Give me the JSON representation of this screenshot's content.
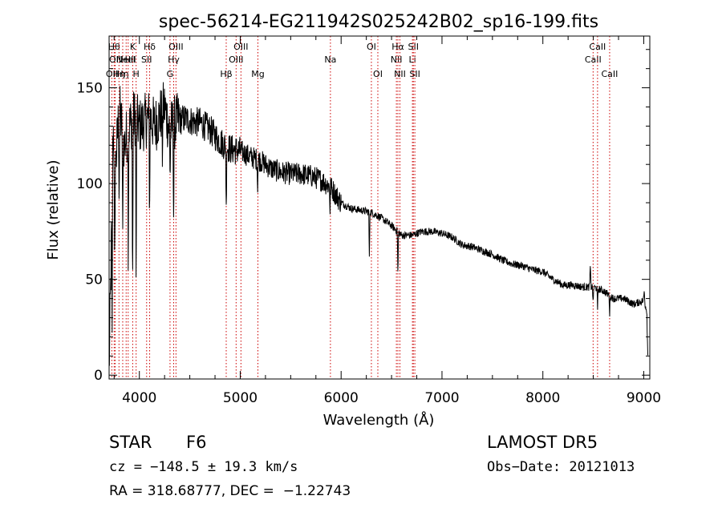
{
  "chart_data": {
    "type": "line",
    "title": "spec-56214-EG211942S025242B02_sp16-199.fits",
    "xlabel": "Wavelength (Å)",
    "ylabel": "Flux (relative)",
    "xlim": [
      3700,
      9060
    ],
    "ylim": [
      -2,
      177
    ],
    "x_ticks": [
      4000,
      5000,
      6000,
      7000,
      8000,
      9000
    ],
    "y_ticks": [
      0,
      50,
      100,
      150
    ],
    "grid": false,
    "line_color": "#000000",
    "marker_line_color": "#cc0000",
    "spectrum_anchor_points": [
      {
        "x": 3700,
        "y": 2
      },
      {
        "x": 3720,
        "y": 60
      },
      {
        "x": 3740,
        "y": 130
      },
      {
        "x": 3760,
        "y": 105
      },
      {
        "x": 3800,
        "y": 140
      },
      {
        "x": 3850,
        "y": 120
      },
      {
        "x": 3900,
        "y": 130
      },
      {
        "x": 3950,
        "y": 135
      },
      {
        "x": 4000,
        "y": 130
      },
      {
        "x": 4050,
        "y": 132
      },
      {
        "x": 4100,
        "y": 135
      },
      {
        "x": 4150,
        "y": 130
      },
      {
        "x": 4200,
        "y": 135
      },
      {
        "x": 4250,
        "y": 140
      },
      {
        "x": 4300,
        "y": 128
      },
      {
        "x": 4350,
        "y": 132
      },
      {
        "x": 4400,
        "y": 133
      },
      {
        "x": 4450,
        "y": 134
      },
      {
        "x": 4500,
        "y": 133
      },
      {
        "x": 4550,
        "y": 132
      },
      {
        "x": 4600,
        "y": 132
      },
      {
        "x": 4700,
        "y": 128
      },
      {
        "x": 4800,
        "y": 122
      },
      {
        "x": 4900,
        "y": 118
      },
      {
        "x": 5000,
        "y": 117
      },
      {
        "x": 5100,
        "y": 114
      },
      {
        "x": 5200,
        "y": 112
      },
      {
        "x": 5300,
        "y": 108
      },
      {
        "x": 5400,
        "y": 106
      },
      {
        "x": 5500,
        "y": 105
      },
      {
        "x": 5600,
        "y": 105
      },
      {
        "x": 5700,
        "y": 104
      },
      {
        "x": 5800,
        "y": 102
      },
      {
        "x": 5900,
        "y": 98
      },
      {
        "x": 6000,
        "y": 90
      },
      {
        "x": 6100,
        "y": 87
      },
      {
        "x": 6200,
        "y": 86
      },
      {
        "x": 6300,
        "y": 85
      },
      {
        "x": 6400,
        "y": 82
      },
      {
        "x": 6500,
        "y": 78
      },
      {
        "x": 6600,
        "y": 73
      },
      {
        "x": 6700,
        "y": 73
      },
      {
        "x": 6800,
        "y": 75
      },
      {
        "x": 6900,
        "y": 75
      },
      {
        "x": 7000,
        "y": 74
      },
      {
        "x": 7100,
        "y": 72
      },
      {
        "x": 7200,
        "y": 68
      },
      {
        "x": 7300,
        "y": 67
      },
      {
        "x": 7400,
        "y": 65
      },
      {
        "x": 7500,
        "y": 63
      },
      {
        "x": 7600,
        "y": 60
      },
      {
        "x": 7700,
        "y": 58
      },
      {
        "x": 7800,
        "y": 57
      },
      {
        "x": 7900,
        "y": 55
      },
      {
        "x": 8000,
        "y": 54
      },
      {
        "x": 8100,
        "y": 50
      },
      {
        "x": 8200,
        "y": 47
      },
      {
        "x": 8300,
        "y": 47
      },
      {
        "x": 8400,
        "y": 46
      },
      {
        "x": 8500,
        "y": 46
      },
      {
        "x": 8600,
        "y": 44
      },
      {
        "x": 8700,
        "y": 40
      },
      {
        "x": 8800,
        "y": 40
      },
      {
        "x": 8900,
        "y": 37
      },
      {
        "x": 9000,
        "y": 39
      },
      {
        "x": 9030,
        "y": 34
      },
      {
        "x": 9040,
        "y": 10
      }
    ],
    "absorption_features": [
      {
        "x": 3730,
        "depth": 80
      },
      {
        "x": 3755,
        "depth": 70
      },
      {
        "x": 3800,
        "depth": 50
      },
      {
        "x": 3835,
        "depth": 60
      },
      {
        "x": 3890,
        "depth": 70
      },
      {
        "x": 3933,
        "depth": 100
      },
      {
        "x": 3968,
        "depth": 95
      },
      {
        "x": 4101,
        "depth": 55
      },
      {
        "x": 4227,
        "depth": 25
      },
      {
        "x": 4305,
        "depth": 25
      },
      {
        "x": 4340,
        "depth": 55
      },
      {
        "x": 4861,
        "depth": 35
      },
      {
        "x": 5172,
        "depth": 15
      },
      {
        "x": 5890,
        "depth": 12
      },
      {
        "x": 6280,
        "depth": 25
      },
      {
        "x": 6563,
        "depth": 25
      },
      {
        "x": 8498,
        "depth": 10
      },
      {
        "x": 8542,
        "depth": 12
      },
      {
        "x": 8662,
        "depth": 10
      }
    ],
    "emission_features": [
      {
        "x": 8470,
        "height": 10
      },
      {
        "x": 9005,
        "height": 6
      }
    ],
    "line_markers": [
      {
        "x": 3727,
        "label": "OII",
        "row": 3
      },
      {
        "x": 3750,
        "label": "Hθ",
        "row": 1
      },
      {
        "x": 3760,
        "label": "OII",
        "row": 2
      },
      {
        "x": 3798,
        "label": "Hη",
        "row": 3
      },
      {
        "x": 3835,
        "label": "Hη",
        "row": 3
      },
      {
        "x": 3869,
        "label": "NeIII",
        "row": 2
      },
      {
        "x": 3889,
        "label": "HeI",
        "row": 2
      },
      {
        "x": 3934,
        "label": "K",
        "row": 1
      },
      {
        "x": 3968,
        "label": "H",
        "row": 3
      },
      {
        "x": 4072,
        "label": "SII",
        "row": 2
      },
      {
        "x": 4102,
        "label": "Hδ",
        "row": 1
      },
      {
        "x": 4304,
        "label": "G",
        "row": 3
      },
      {
        "x": 4340,
        "label": "Hγ",
        "row": 2
      },
      {
        "x": 4363,
        "label": "OIII",
        "row": 1
      },
      {
        "x": 4861,
        "label": "Hβ",
        "row": 3
      },
      {
        "x": 4959,
        "label": "OIII",
        "row": 2
      },
      {
        "x": 5007,
        "label": "OIII",
        "row": 1
      },
      {
        "x": 5175,
        "label": "Mg",
        "row": 3
      },
      {
        "x": 5894,
        "label": "Na",
        "row": 2
      },
      {
        "x": 6300,
        "label": "OI",
        "row": 1
      },
      {
        "x": 6364,
        "label": "OI",
        "row": 3
      },
      {
        "x": 6548,
        "label": "NII",
        "row": 2
      },
      {
        "x": 6563,
        "label": "Hα",
        "row": 1
      },
      {
        "x": 6583,
        "label": "NII",
        "row": 3
      },
      {
        "x": 6707,
        "label": "Li",
        "row": 2
      },
      {
        "x": 6716,
        "label": "SII",
        "row": 1
      },
      {
        "x": 6731,
        "label": "SII",
        "row": 3
      },
      {
        "x": 8498,
        "label": "CaII",
        "row": 2
      },
      {
        "x": 8542,
        "label": "CaII",
        "row": 1
      },
      {
        "x": 8662,
        "label": "CaII",
        "row": 3
      }
    ]
  },
  "info": {
    "object_class": "STAR",
    "subclass": "F6",
    "survey": "LAMOST DR5",
    "redshift": "cz = −148.5 ± 19.3 km/s",
    "obs_date": "Obs−Date: 20121013",
    "coords": "RA = 318.68777, DEC =  −1.22743"
  }
}
